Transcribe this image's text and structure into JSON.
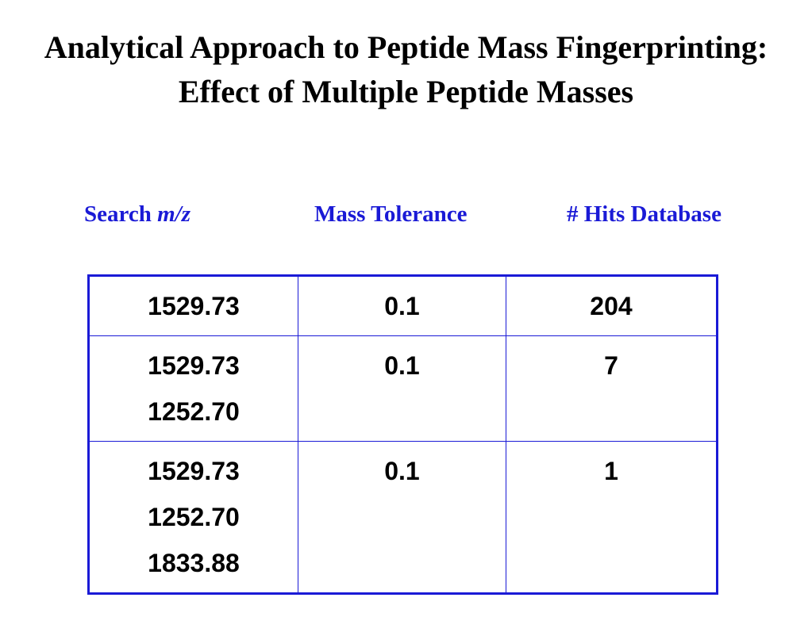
{
  "slide": {
    "title": "Analytical Approach to Peptide Mass Fingerprinting: Effect of Multiple Peptide Masses"
  },
  "headers": {
    "search_prefix": "Search ",
    "search_mz": "m/z",
    "mass_tolerance": "Mass Tolerance",
    "hits_database": "# Hits Database"
  },
  "rows": [
    {
      "masses": [
        "1529.73"
      ],
      "tolerance": "0.1",
      "hits": "204"
    },
    {
      "masses": [
        "1529.73",
        "1252.70"
      ],
      "tolerance": "0.1",
      "hits": "7"
    },
    {
      "masses": [
        "1529.73",
        "1252.70",
        "1833.88"
      ],
      "tolerance": "0.1",
      "hits": "1"
    }
  ],
  "colors": {
    "header_text": "#1a1ad6",
    "table_border": "#1a1ad6",
    "body_text": "#000000"
  }
}
